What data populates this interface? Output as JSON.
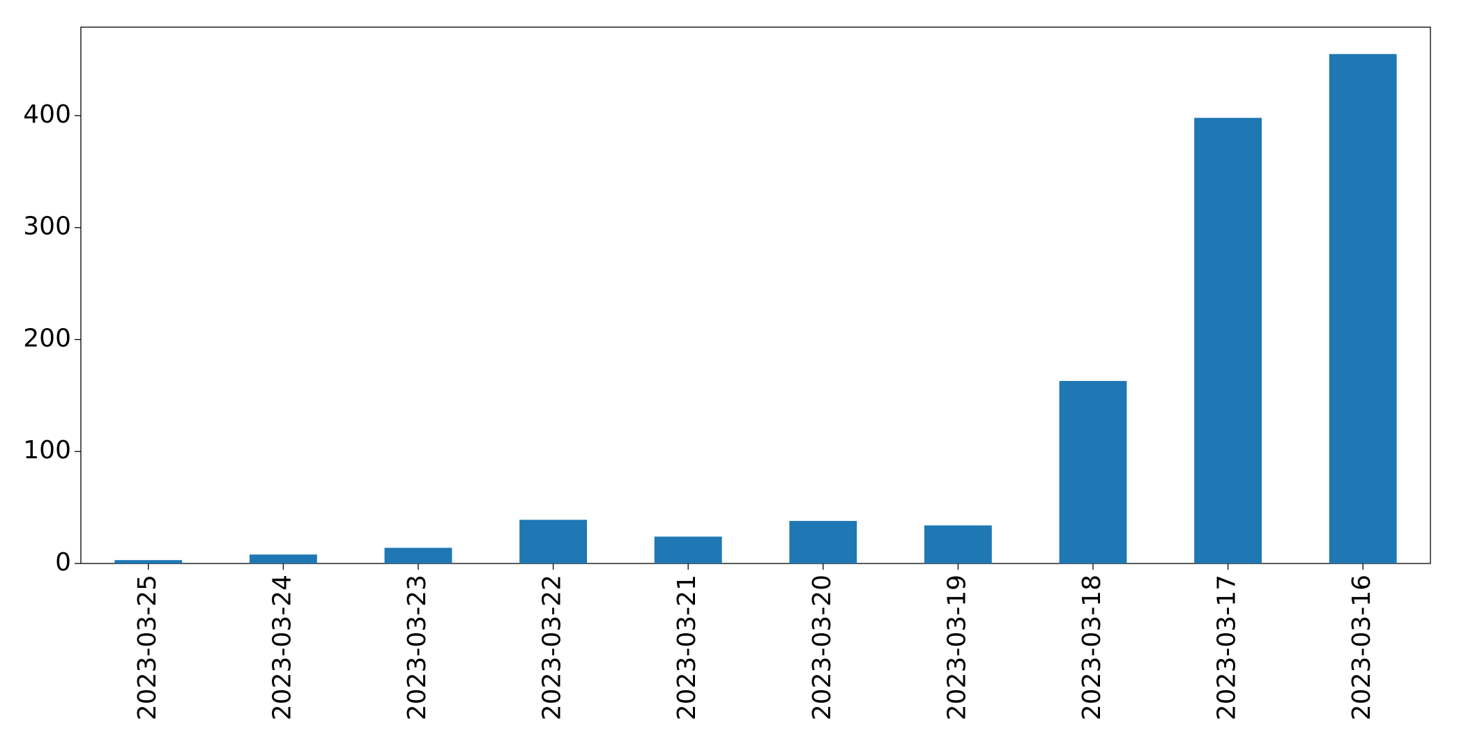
{
  "chart_data": {
    "type": "bar",
    "categories": [
      "2023-03-25",
      "2023-03-24",
      "2023-03-23",
      "2023-03-22",
      "2023-03-21",
      "2023-03-20",
      "2023-03-19",
      "2023-03-18",
      "2023-03-17",
      "2023-03-16"
    ],
    "values": [
      3,
      8,
      14,
      39,
      24,
      38,
      34,
      163,
      398,
      455
    ],
    "color": "#1f77b4",
    "ylim": [
      0,
      479
    ],
    "yticks": [
      0,
      100,
      200,
      300,
      400
    ],
    "grid": false
  }
}
